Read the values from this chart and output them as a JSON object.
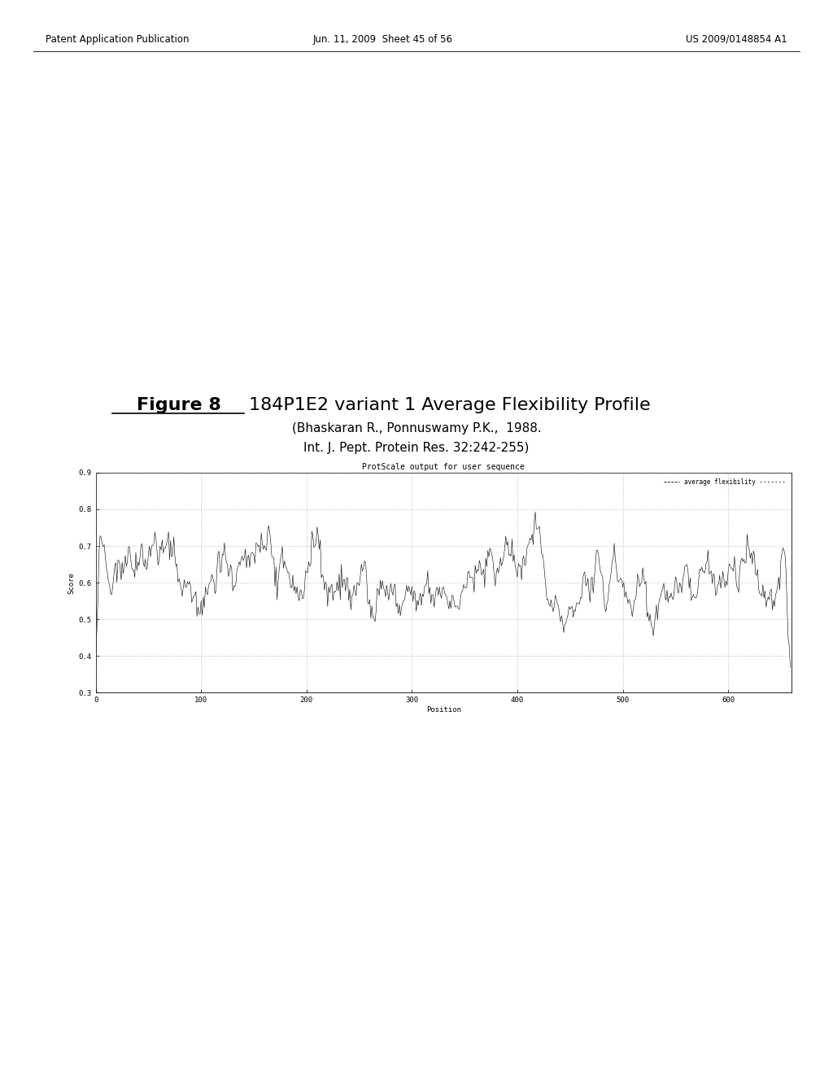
{
  "figure_title_bold": "Figure 8",
  "figure_title_rest": "  184P1E2 variant 1 Average Flexibility Profile",
  "subtitle1": "(Bhaskaran R., Ponnuswamy P.K.,  1988.",
  "subtitle2": "Int. J. Pept. Protein Res. 32:242-255)",
  "plot_title": "ProtScale output for user sequence",
  "legend_label": "average flexibility",
  "xlabel": "Position",
  "ylabel": "Score",
  "xlim": [
    0,
    660
  ],
  "ylim": [
    0.3,
    0.9
  ],
  "yticks": [
    0.3,
    0.4,
    0.5,
    0.6,
    0.7,
    0.8,
    0.9
  ],
  "xticks": [
    0,
    100,
    200,
    300,
    400,
    500,
    600
  ],
  "xtick_labels": [
    "0",
    "100",
    "200",
    "300",
    "400",
    "500",
    "600"
  ],
  "background_color": "#ffffff",
  "line_color": "#000000",
  "grid_color": "#999999",
  "n_points": 660,
  "seed": 42,
  "header_left": "Patent Application Publication",
  "header_mid": "Jun. 11, 2009  Sheet 45 of 56",
  "header_right": "US 2009/0148854 A1"
}
